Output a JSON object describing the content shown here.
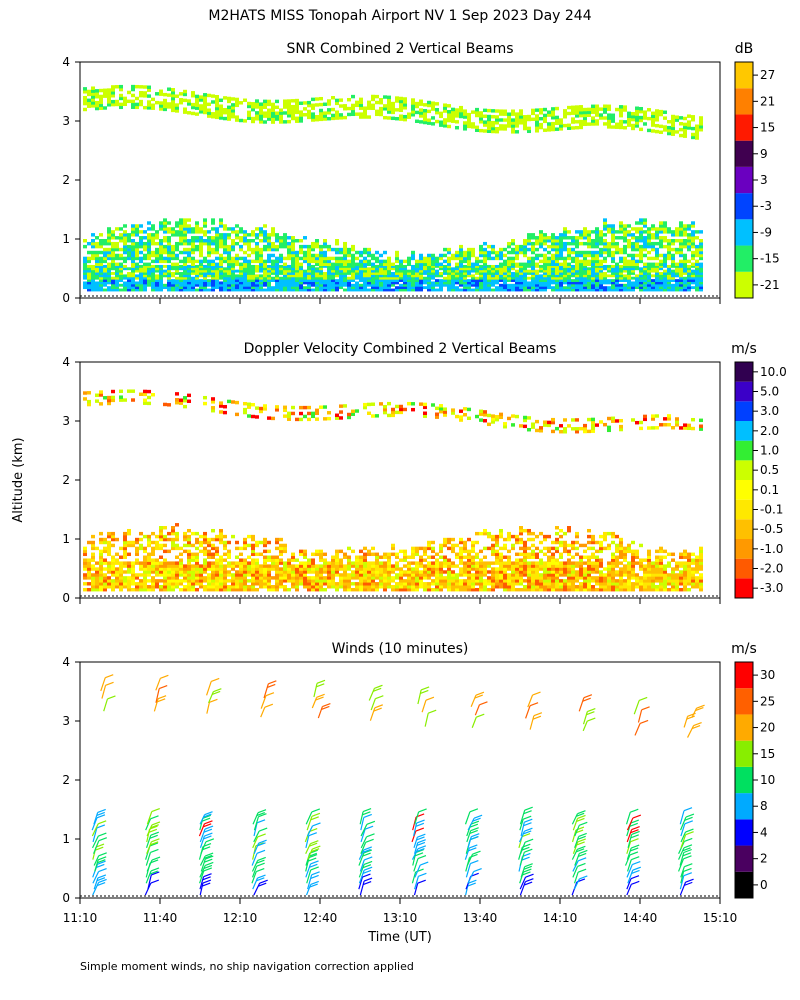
{
  "figure_title": "M2HATS MISS Tonopah Airport NV   1 Sep 2023 Day 244",
  "footnote": "Simple moment winds, no ship navigation correction applied",
  "shared_ylabel": "Altitude (km)",
  "shared_xlabel": "Time (UT)",
  "chart_data": [
    {
      "type": "heatmap",
      "title": "SNR Combined 2 Vertical Beams",
      "unit": "dB",
      "x_range": [
        "11:10",
        "15:10"
      ],
      "ylim": [
        0,
        4
      ],
      "yticks": [
        0,
        1,
        2,
        3,
        4
      ],
      "xtick_labels": [],
      "colorbar": {
        "colors": [
          "#ccff00",
          "#22ee66",
          "#00c0ff",
          "#0044ff",
          "#6a00c0",
          "#400050",
          "#ff1a00",
          "#ff8000",
          "#ffc800"
        ],
        "labels": [
          "-21",
          "-15",
          "-9",
          "-3",
          "3",
          "9",
          "15",
          "21",
          "27"
        ]
      },
      "layers": [
        {
          "name": "lower layer strong",
          "alt_km": [
            0.1,
            0.55
          ],
          "values_db": [
            -9,
            -3
          ]
        },
        {
          "name": "lower layer",
          "alt_km": [
            0.55,
            1.0
          ],
          "values_db": [
            -21,
            -15
          ]
        },
        {
          "name": "upper layer",
          "alt_km": [
            2.7,
            3.6
          ],
          "values_db": [
            -21,
            -15
          ]
        }
      ]
    },
    {
      "type": "heatmap",
      "title": "Doppler Velocity Combined 2 Vertical Beams",
      "unit": "m/s",
      "x_range": [
        "11:10",
        "15:10"
      ],
      "ylim": [
        0,
        4
      ],
      "yticks": [
        0,
        1,
        2,
        3,
        4
      ],
      "xtick_labels": [],
      "colorbar": {
        "colors": [
          "#ff0000",
          "#ff5a00",
          "#ff9900",
          "#ffc000",
          "#ffe800",
          "#ffff00",
          "#ccff00",
          "#33ee33",
          "#00bfff",
          "#0040ff",
          "#3b00c8",
          "#300050"
        ],
        "labels": [
          "-3.0",
          "-2.0",
          "-1.0",
          "-0.5",
          "-0.1",
          "0.1",
          "0.5",
          "1.0",
          "2.0",
          "3.0",
          "5.0",
          "10.0"
        ]
      },
      "layers": [
        {
          "name": "lower layer",
          "alt_km": [
            0.1,
            1.2
          ],
          "values_ms": [
            -1.0,
            0.5
          ]
        },
        {
          "name": "upper layer",
          "alt_km": [
            2.7,
            3.6
          ],
          "values_ms": [
            -2.0,
            0.5
          ]
        }
      ]
    },
    {
      "type": "scatter",
      "title": "Winds (10 minutes)",
      "unit": "m/s",
      "x_range": [
        "11:10",
        "15:10"
      ],
      "ylim": [
        0,
        4
      ],
      "yticks": [
        0,
        1,
        2,
        3,
        4
      ],
      "xtick_labels": [
        "11:10",
        "11:40",
        "12:10",
        "12:40",
        "13:10",
        "13:40",
        "14:10",
        "14:40",
        "15:10"
      ],
      "colorbar": {
        "colors": [
          "#000000",
          "#4a0060",
          "#0000ff",
          "#00aaff",
          "#00e060",
          "#88ee00",
          "#ffaa00",
          "#ff6000",
          "#ff0000"
        ],
        "labels": [
          "0",
          "2",
          "4",
          "8",
          "10",
          "15",
          "20",
          "25",
          "30"
        ]
      },
      "barb_columns_min_after_1110": [
        5,
        25,
        45,
        65,
        85,
        105,
        125,
        145,
        165,
        185,
        205,
        225
      ],
      "layers": [
        {
          "name": "boundary layer",
          "alt_km": [
            0.0,
            1.4
          ],
          "speed_ms": [
            8,
            15
          ]
        },
        {
          "name": "upper layer",
          "alt_km": [
            2.7,
            3.7
          ],
          "speed_ms": [
            15,
            25
          ]
        }
      ]
    }
  ]
}
